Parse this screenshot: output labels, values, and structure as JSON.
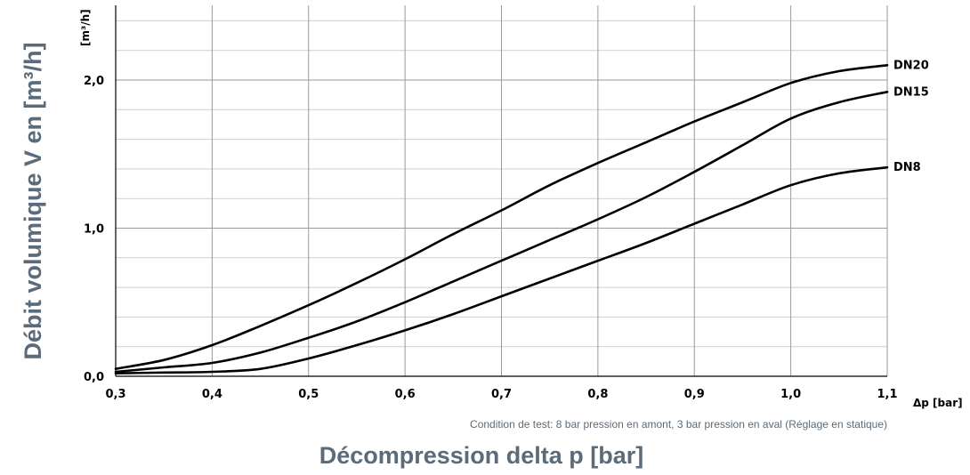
{
  "chart_data": {
    "type": "line",
    "xlabel": "Décompression delta p [bar]",
    "ylabel": "Débit volumique V en [m³/h]",
    "x_unit_label": "Δp [bar]",
    "y_unit_label": "[m³/h]",
    "note": "Condition de test: 8 bar pression en amont, 3 bar pression en aval (Réglage en statique)",
    "xlim": [
      0.3,
      1.1
    ],
    "ylim": [
      0.0,
      2.45
    ],
    "x_ticks": [
      "0,3",
      "0,4",
      "0,5",
      "0,6",
      "0,7",
      "0,8",
      "0,9",
      "1,0",
      "1,1"
    ],
    "y_ticks": [
      "0,0",
      "1,0",
      "2,0"
    ],
    "grid": true,
    "series": [
      {
        "name": "DN20",
        "x": [
          0.3,
          0.35,
          0.4,
          0.45,
          0.5,
          0.55,
          0.6,
          0.65,
          0.7,
          0.75,
          0.8,
          0.85,
          0.9,
          0.95,
          1.0,
          1.05,
          1.1
        ],
        "y": [
          0.05,
          0.11,
          0.21,
          0.34,
          0.48,
          0.63,
          0.79,
          0.96,
          1.12,
          1.29,
          1.44,
          1.58,
          1.72,
          1.85,
          1.98,
          2.06,
          2.1
        ]
      },
      {
        "name": "DN15",
        "x": [
          0.3,
          0.35,
          0.4,
          0.45,
          0.5,
          0.55,
          0.6,
          0.65,
          0.7,
          0.75,
          0.8,
          0.85,
          0.9,
          0.95,
          1.0,
          1.05,
          1.1
        ],
        "y": [
          0.03,
          0.06,
          0.09,
          0.16,
          0.26,
          0.37,
          0.5,
          0.64,
          0.78,
          0.92,
          1.06,
          1.21,
          1.38,
          1.56,
          1.74,
          1.85,
          1.92
        ]
      },
      {
        "name": "DN8",
        "x": [
          0.3,
          0.35,
          0.4,
          0.45,
          0.5,
          0.55,
          0.6,
          0.65,
          0.7,
          0.75,
          0.8,
          0.85,
          0.9,
          0.95,
          1.0,
          1.05,
          1.1
        ],
        "y": [
          0.02,
          0.025,
          0.03,
          0.05,
          0.12,
          0.21,
          0.31,
          0.42,
          0.54,
          0.66,
          0.78,
          0.9,
          1.03,
          1.16,
          1.29,
          1.37,
          1.41
        ]
      }
    ]
  }
}
